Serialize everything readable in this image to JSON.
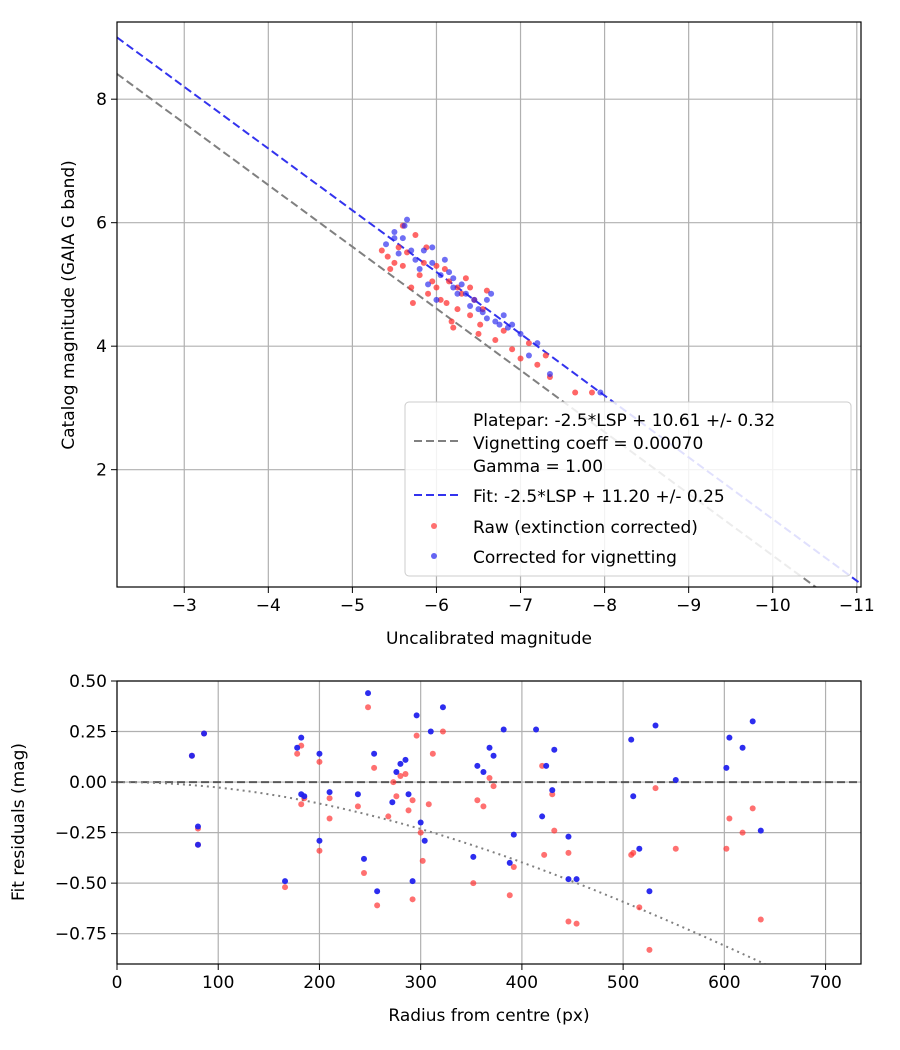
{
  "colors": {
    "raw": "#ff3333",
    "corrected": "#2222ee",
    "platepar": "#808080",
    "fit": "#3333ee",
    "grid": "#b0b0b0",
    "overlap": "#8b1a8b"
  },
  "chart_data": [
    {
      "type": "scatter",
      "xlabel": "Uncalibrated magnitude",
      "ylabel": "Catalog magnitude (GAIA G band)",
      "xlim": [
        -2.2,
        -11.05
      ],
      "ylim": [
        9.25,
        0.1
      ],
      "xticks": [
        "−3",
        "−4",
        "−5",
        "−6",
        "−7",
        "−8",
        "−9",
        "−10",
        "−11"
      ],
      "xtick_values": [
        -3,
        -4,
        -5,
        -6,
        -7,
        -8,
        -9,
        -10,
        -11
      ],
      "yticks": [
        "2",
        "4",
        "6",
        "8"
      ],
      "ytick_values": [
        2,
        4,
        6,
        8
      ],
      "grid": true,
      "lines": [
        {
          "name": "platepar",
          "slope": 1,
          "intercept": 10.61
        },
        {
          "name": "fit",
          "slope": 1,
          "intercept": 11.2
        }
      ],
      "legend": {
        "position": "bottom-right",
        "platepar_lines": [
          "Platepar: -2.5*LSP + 10.61 +/- 0.32",
          "Vignetting coeff = 0.00070",
          "Gamma = 1.00"
        ],
        "fit": "Fit: -2.5*LSP + 11.20 +/- 0.25",
        "raw": "Raw (extinction corrected)",
        "corrected": "Corrected for vignetting"
      },
      "raw_points": [
        [
          -5.35,
          5.55
        ],
        [
          -5.42,
          5.45
        ],
        [
          -5.5,
          5.35
        ],
        [
          -5.55,
          5.6
        ],
        [
          -5.6,
          5.3
        ],
        [
          -5.65,
          5.52
        ],
        [
          -5.7,
          4.95
        ],
        [
          -5.72,
          4.7
        ],
        [
          -5.8,
          5.15
        ],
        [
          -5.85,
          5.35
        ],
        [
          -5.88,
          5.6
        ],
        [
          -5.95,
          5.05
        ],
        [
          -6.0,
          4.95
        ],
        [
          -6.05,
          4.75
        ],
        [
          -6.1,
          5.25
        ],
        [
          -6.12,
          4.7
        ],
        [
          -6.18,
          4.4
        ],
        [
          -6.2,
          4.3
        ],
        [
          -6.25,
          4.6
        ],
        [
          -6.3,
          4.85
        ],
        [
          -6.35,
          5.1
        ],
        [
          -6.4,
          4.5
        ],
        [
          -6.45,
          4.75
        ],
        [
          -6.5,
          4.2
        ],
        [
          -6.52,
          4.35
        ],
        [
          -6.55,
          4.6
        ],
        [
          -6.6,
          4.9
        ],
        [
          -6.7,
          4.1
        ],
        [
          -6.8,
          4.25
        ],
        [
          -6.9,
          3.95
        ],
        [
          -7.0,
          3.8
        ],
        [
          -7.1,
          4.05
        ],
        [
          -7.2,
          3.7
        ],
        [
          -7.3,
          3.85
        ],
        [
          -7.35,
          3.5
        ],
        [
          -7.65,
          3.25
        ],
        [
          -7.85,
          3.25
        ],
        [
          -5.6,
          5.95
        ],
        [
          -5.75,
          5.8
        ],
        [
          -6.0,
          5.3
        ],
        [
          -6.15,
          5.05
        ],
        [
          -6.4,
          4.95
        ],
        [
          -5.9,
          4.85
        ],
        [
          -5.45,
          5.25
        ],
        [
          -6.25,
          4.95
        ]
      ],
      "corrected_points": [
        [
          -5.4,
          5.65
        ],
        [
          -5.5,
          5.75
        ],
        [
          -5.55,
          5.5
        ],
        [
          -5.62,
          5.95
        ],
        [
          -5.65,
          6.05
        ],
        [
          -5.7,
          5.55
        ],
        [
          -5.75,
          5.4
        ],
        [
          -5.8,
          5.25
        ],
        [
          -5.85,
          5.55
        ],
        [
          -5.9,
          5.0
        ],
        [
          -5.95,
          5.35
        ],
        [
          -6.0,
          4.75
        ],
        [
          -6.05,
          5.15
        ],
        [
          -6.1,
          5.4
        ],
        [
          -6.15,
          5.2
        ],
        [
          -6.2,
          4.95
        ],
        [
          -6.25,
          4.85
        ],
        [
          -6.3,
          5.0
        ],
        [
          -6.35,
          4.85
        ],
        [
          -6.4,
          4.65
        ],
        [
          -6.45,
          4.75
        ],
        [
          -6.5,
          4.6
        ],
        [
          -6.55,
          4.55
        ],
        [
          -6.6,
          4.75
        ],
        [
          -6.65,
          4.85
        ],
        [
          -6.7,
          4.4
        ],
        [
          -6.75,
          4.35
        ],
        [
          -6.8,
          4.5
        ],
        [
          -6.85,
          4.3
        ],
        [
          -6.9,
          4.35
        ],
        [
          -7.0,
          4.2
        ],
        [
          -7.1,
          3.85
        ],
        [
          -7.2,
          4.05
        ],
        [
          -7.35,
          3.55
        ],
        [
          -7.95,
          3.25
        ],
        [
          -5.5,
          5.85
        ],
        [
          -5.6,
          5.75
        ],
        [
          -5.95,
          5.6
        ],
        [
          -6.2,
          5.1
        ],
        [
          -6.6,
          4.45
        ]
      ]
    },
    {
      "type": "scatter",
      "xlabel": "Radius from centre (px)",
      "ylabel": "Fit residuals (mag)",
      "xlim": [
        0,
        735
      ],
      "ylim": [
        -0.9,
        0.5
      ],
      "xticks": [
        "0",
        "100",
        "200",
        "300",
        "400",
        "500",
        "600",
        "700"
      ],
      "xtick_values": [
        0,
        100,
        200,
        300,
        400,
        500,
        600,
        700
      ],
      "yticks": [
        "0.50",
        "0.25",
        "0.00",
        "−0.25",
        "−0.50",
        "−0.75"
      ],
      "ytick_values": [
        0.5,
        0.25,
        0,
        -0.25,
        -0.5,
        -0.75
      ],
      "grid": true,
      "vignetting_coeff": 0.0007,
      "raw_points": [
        [
          74,
          0.13
        ],
        [
          80,
          -0.23
        ],
        [
          80,
          -0.31
        ],
        [
          86,
          0.24
        ],
        [
          166,
          -0.52
        ],
        [
          178,
          0.14
        ],
        [
          182,
          0.18
        ],
        [
          182,
          -0.11
        ],
        [
          185,
          -0.08
        ],
        [
          200,
          0.1
        ],
        [
          200,
          -0.34
        ],
        [
          210,
          -0.08
        ],
        [
          210,
          -0.18
        ],
        [
          238,
          -0.12
        ],
        [
          244,
          -0.45
        ],
        [
          248,
          0.37
        ],
        [
          254,
          0.07
        ],
        [
          257,
          -0.61
        ],
        [
          268,
          -0.17
        ],
        [
          273,
          0.0
        ],
        [
          276,
          -0.07
        ],
        [
          280,
          0.03
        ],
        [
          285,
          0.04
        ],
        [
          288,
          -0.14
        ],
        [
          292,
          -0.09
        ],
        [
          292,
          -0.58
        ],
        [
          296,
          0.23
        ],
        [
          300,
          -0.25
        ],
        [
          302,
          -0.39
        ],
        [
          308,
          -0.11
        ],
        [
          312,
          0.14
        ],
        [
          322,
          0.25
        ],
        [
          352,
          -0.5
        ],
        [
          356,
          -0.09
        ],
        [
          362,
          -0.12
        ],
        [
          368,
          0.02
        ],
        [
          372,
          -0.02
        ],
        [
          388,
          -0.56
        ],
        [
          392,
          -0.42
        ],
        [
          420,
          0.08
        ],
        [
          422,
          -0.36
        ],
        [
          430,
          -0.06
        ],
        [
          432,
          -0.24
        ],
        [
          446,
          -0.35
        ],
        [
          446,
          -0.69
        ],
        [
          454,
          -0.7
        ],
        [
          508,
          -0.36
        ],
        [
          510,
          -0.35
        ],
        [
          516,
          -0.62
        ],
        [
          526,
          -0.83
        ],
        [
          532,
          -0.03
        ],
        [
          552,
          -0.33
        ],
        [
          602,
          -0.33
        ],
        [
          605,
          -0.18
        ],
        [
          618,
          -0.25
        ],
        [
          628,
          -0.13
        ],
        [
          636,
          -0.68
        ]
      ],
      "corrected_points": [
        [
          74,
          0.13
        ],
        [
          80,
          -0.22
        ],
        [
          80,
          -0.31
        ],
        [
          86,
          0.24
        ],
        [
          166,
          -0.49
        ],
        [
          178,
          0.17
        ],
        [
          182,
          0.22
        ],
        [
          182,
          -0.06
        ],
        [
          185,
          -0.07
        ],
        [
          200,
          0.14
        ],
        [
          200,
          -0.29
        ],
        [
          210,
          -0.05
        ],
        [
          238,
          -0.06
        ],
        [
          244,
          -0.38
        ],
        [
          248,
          0.44
        ],
        [
          254,
          0.14
        ],
        [
          257,
          -0.54
        ],
        [
          272,
          -0.1
        ],
        [
          276,
          0.05
        ],
        [
          280,
          0.09
        ],
        [
          285,
          0.11
        ],
        [
          288,
          -0.06
        ],
        [
          292,
          -0.49
        ],
        [
          296,
          0.33
        ],
        [
          300,
          -0.2
        ],
        [
          304,
          -0.29
        ],
        [
          310,
          0.25
        ],
        [
          322,
          0.37
        ],
        [
          352,
          -0.37
        ],
        [
          356,
          0.08
        ],
        [
          362,
          0.05
        ],
        [
          368,
          0.17
        ],
        [
          372,
          0.13
        ],
        [
          382,
          0.26
        ],
        [
          388,
          -0.4
        ],
        [
          392,
          -0.26
        ],
        [
          414,
          0.26
        ],
        [
          420,
          -0.17
        ],
        [
          424,
          0.08
        ],
        [
          430,
          -0.04
        ],
        [
          432,
          0.16
        ],
        [
          446,
          -0.27
        ],
        [
          446,
          -0.48
        ],
        [
          454,
          -0.48
        ],
        [
          508,
          0.21
        ],
        [
          510,
          -0.07
        ],
        [
          516,
          -0.33
        ],
        [
          526,
          -0.54
        ],
        [
          532,
          0.28
        ],
        [
          552,
          0.01
        ],
        [
          602,
          0.07
        ],
        [
          605,
          0.22
        ],
        [
          618,
          0.17
        ],
        [
          628,
          0.3
        ],
        [
          636,
          -0.24
        ]
      ]
    }
  ]
}
